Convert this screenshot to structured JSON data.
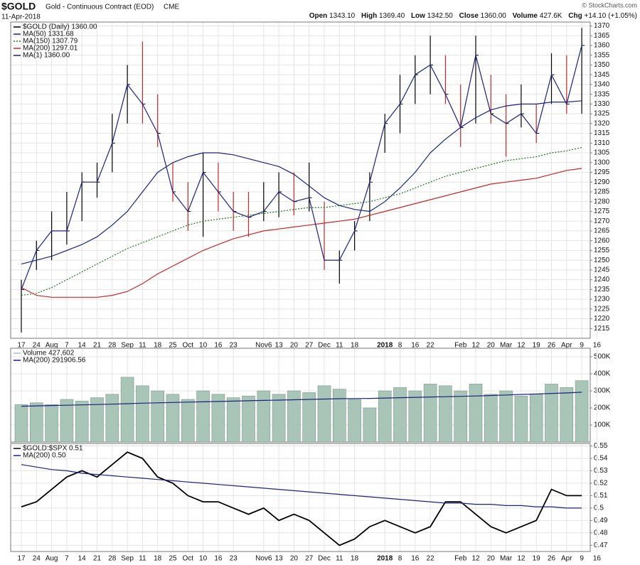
{
  "header": {
    "symbol": "$GOLD",
    "name": "Gold - Continuous Contract (EOD)",
    "exchange": "CME",
    "date": "11-Apr-2018",
    "copyright": "© StockCharts.com",
    "stats": [
      {
        "label": "Open",
        "value": "1343.10"
      },
      {
        "label": "High",
        "value": "1369.40"
      },
      {
        "label": "Low",
        "value": "1342.50"
      },
      {
        "label": "Close",
        "value": "1360.00"
      },
      {
        "label": "Volume",
        "value": "427.6K"
      },
      {
        "label": "Chg",
        "value": "+14.10 (+1.05%)"
      }
    ]
  },
  "chart_data": [
    {
      "type": "ohlc",
      "grid": true,
      "categories": [
        "17",
        "24",
        "Aug",
        "7",
        "14",
        "21",
        "28",
        "Sep",
        "11",
        "18",
        "25",
        "Oct",
        "10",
        "16",
        "23",
        null,
        "Nov6",
        "13",
        "20",
        "27",
        "Dec",
        "11",
        "18",
        null,
        "2018",
        "8",
        "16",
        "22",
        null,
        "Feb",
        "12",
        "20",
        "Mar",
        "12",
        "19",
        "26",
        "Apr",
        "9",
        "16"
      ],
      "ylim": [
        1210,
        1372
      ],
      "yticks": [
        1215,
        1220,
        1225,
        1230,
        1235,
        1240,
        1245,
        1250,
        1255,
        1260,
        1265,
        1270,
        1275,
        1280,
        1285,
        1290,
        1295,
        1300,
        1305,
        1310,
        1315,
        1320,
        1325,
        1330,
        1335,
        1340,
        1345,
        1350,
        1355,
        1360,
        1365,
        1370
      ],
      "series": [
        {
          "name": "$GOLD (Daily) 1360.00",
          "color": "#000000",
          "high": [
            1240,
            1260,
            1275,
            1285,
            1295,
            1300,
            1325,
            1350,
            1362,
            1335,
            1300,
            1290,
            1305,
            1300,
            1285,
            1285,
            1290,
            1295,
            1295,
            1300,
            1280,
            1255,
            1270,
            1295,
            1325,
            1345,
            1355,
            1365,
            1355,
            1340,
            1365,
            1345,
            1335,
            1340,
            1330,
            1356,
            1355,
            1369,
            null
          ],
          "low": [
            1213,
            1245,
            1250,
            1258,
            1270,
            1282,
            1295,
            1320,
            1320,
            1308,
            1280,
            1265,
            1262,
            1275,
            1265,
            1262,
            1270,
            1272,
            1273,
            1275,
            1245,
            1238,
            1255,
            1270,
            1305,
            1315,
            1330,
            1335,
            1330,
            1308,
            1320,
            1320,
            1303,
            1318,
            1310,
            1330,
            1325,
            1325,
            null
          ],
          "values": [
            1235,
            1255,
            1265,
            1265,
            1290,
            1290,
            1310,
            1340,
            1330,
            1315,
            1285,
            1275,
            1295,
            1285,
            1275,
            1272,
            1275,
            1285,
            1280,
            1282,
            1250,
            1250,
            1265,
            1290,
            1320,
            1330,
            1345,
            1350,
            1335,
            1318,
            1355,
            1325,
            1320,
            1325,
            1315,
            1345,
            1330,
            1360,
            null
          ]
        },
        {
          "name": "MA(50) 1331.68",
          "color": "#1a237e",
          "style": "solid",
          "values": [
            1248,
            1250,
            1252,
            1255,
            1258,
            1262,
            1268,
            1275,
            1285,
            1295,
            1300,
            1303,
            1305,
            1305,
            1304,
            1302,
            1300,
            1298,
            1294,
            1288,
            1282,
            1278,
            1276,
            1275,
            1280,
            1287,
            1295,
            1305,
            1312,
            1318,
            1323,
            1327,
            1329,
            1330,
            1330,
            1331,
            1331,
            1331.68,
            null
          ]
        },
        {
          "name": "MA(150) 1307.79",
          "color": "#1b7a1b",
          "style": "dotted",
          "values": [
            1232,
            1233,
            1236,
            1240,
            1244,
            1248,
            1252,
            1256,
            1259,
            1262,
            1265,
            1268,
            1270,
            1271,
            1272,
            1273,
            1274,
            1275,
            1276,
            1277,
            1277,
            1278,
            1279,
            1280,
            1282,
            1284,
            1287,
            1290,
            1293,
            1295,
            1297,
            1299,
            1301,
            1302,
            1303,
            1305,
            1306,
            1307.79,
            null
          ]
        },
        {
          "name": "MA(200) 1297.01",
          "color": "#c62828",
          "style": "solid",
          "values": [
            1236,
            1232,
            1231,
            1231,
            1231,
            1231,
            1232,
            1234,
            1238,
            1243,
            1247,
            1251,
            1255,
            1258,
            1261,
            1263,
            1265,
            1266,
            1267,
            1268,
            1269,
            1270,
            1271,
            1273,
            1275,
            1277,
            1279,
            1281,
            1283,
            1285,
            1287,
            1289,
            1290,
            1291,
            1292,
            1294,
            1296,
            1297.01,
            null
          ]
        },
        {
          "name": "MA(1) 1360.00",
          "color": "#1a237e",
          "style": "solid",
          "values": [
            1235,
            1255,
            1265,
            1265,
            1290,
            1290,
            1310,
            1340,
            1330,
            1315,
            1285,
            1275,
            1295,
            1285,
            1275,
            1272,
            1275,
            1285,
            1280,
            1282,
            1250,
            1250,
            1265,
            1290,
            1320,
            1330,
            1345,
            1350,
            1335,
            1318,
            1355,
            1325,
            1320,
            1325,
            1315,
            1345,
            1330,
            1360,
            null
          ]
        }
      ]
    },
    {
      "type": "bar",
      "grid": true,
      "ylim": [
        0,
        550000
      ],
      "yticks": [
        {
          "value": 100000,
          "label": "100K"
        },
        {
          "value": 200000,
          "label": "200K"
        },
        {
          "value": 300000,
          "label": "300K"
        },
        {
          "value": 400000,
          "label": "400K"
        },
        {
          "value": 500000,
          "label": "500K"
        }
      ],
      "series": [
        {
          "name": "Volume 427,602",
          "color": "#a9c5b7",
          "values": [
            220000,
            230000,
            220000,
            250000,
            240000,
            260000,
            280000,
            380000,
            330000,
            300000,
            280000,
            250000,
            300000,
            280000,
            260000,
            270000,
            300000,
            280000,
            300000,
            290000,
            330000,
            310000,
            250000,
            200000,
            300000,
            320000,
            300000,
            340000,
            330000,
            300000,
            340000,
            280000,
            300000,
            270000,
            280000,
            340000,
            320000,
            360000,
            null
          ]
        },
        {
          "name": "MA(200) 291906.56",
          "color": "#1a237e",
          "style": "solid",
          "values": [
            210000,
            212000,
            214000,
            216000,
            218000,
            220000,
            222000,
            225000,
            228000,
            230000,
            232000,
            234000,
            236000,
            238000,
            240000,
            242000,
            244000,
            246000,
            248000,
            250000,
            252000,
            254000,
            255000,
            256000,
            258000,
            260000,
            262000,
            264000,
            266000,
            268000,
            270000,
            273000,
            276000,
            279000,
            282000,
            285000,
            288000,
            291906.56,
            null
          ]
        }
      ]
    },
    {
      "type": "line",
      "grid": true,
      "categories": [
        "17",
        "24",
        "Aug",
        "7",
        "14",
        "21",
        "28",
        "Sep",
        "11",
        "18",
        "25",
        "Oct",
        "10",
        "16",
        "23",
        null,
        "Nov6",
        "13",
        "20",
        "27",
        "Dec",
        "11",
        "18",
        null,
        "2018",
        "8",
        "16",
        "22",
        null,
        "Feb",
        "12",
        "20",
        "Mar",
        "12",
        "19",
        "26",
        "Apr",
        "9",
        "16"
      ],
      "ylim": [
        0.465,
        0.552
      ],
      "yticks": [
        0.47,
        0.48,
        0.49,
        0.5,
        0.51,
        0.52,
        0.53,
        0.54,
        0.55
      ],
      "series": [
        {
          "name": "$GOLD:$SPX 0.51",
          "color": "#000000",
          "style": "bold",
          "values": [
            0.501,
            0.505,
            0.515,
            0.525,
            0.53,
            0.525,
            0.535,
            0.545,
            0.54,
            0.525,
            0.52,
            0.51,
            0.505,
            0.505,
            0.5,
            0.495,
            0.5,
            0.49,
            0.495,
            0.49,
            0.48,
            0.47,
            0.475,
            0.485,
            0.49,
            0.485,
            0.48,
            0.485,
            0.505,
            0.505,
            0.495,
            0.485,
            0.48,
            0.485,
            0.49,
            0.515,
            0.51,
            0.51,
            null
          ]
        },
        {
          "name": "MA(200) 0.50",
          "color": "#1a237e",
          "style": "solid",
          "values": [
            0.535,
            0.533,
            0.531,
            0.53,
            0.528,
            0.527,
            0.526,
            0.525,
            0.524,
            0.523,
            0.522,
            0.521,
            0.52,
            0.519,
            0.518,
            0.517,
            0.516,
            0.515,
            0.514,
            0.513,
            0.512,
            0.511,
            0.51,
            0.509,
            0.508,
            0.507,
            0.506,
            0.505,
            0.504,
            0.504,
            0.503,
            0.503,
            0.502,
            0.502,
            0.501,
            0.501,
            0.5,
            0.5,
            null
          ]
        }
      ]
    }
  ]
}
